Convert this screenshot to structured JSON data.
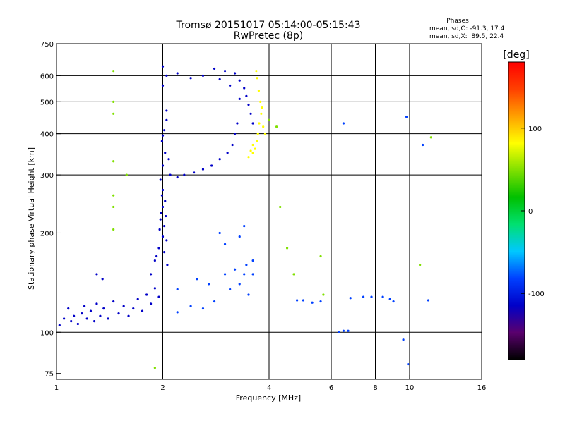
{
  "chart_data": {
    "type": "scatter",
    "title": "Tromsø 20151017 05:14:00-05:15:43",
    "subtitle": "RwPretec (8p)",
    "stats": {
      "heading": "Phases",
      "line_o": "mean, sd,O: -91.3, 17.4",
      "line_x": "mean, sd,X:  89.5, 22.4"
    },
    "xlabel": "Frequency [MHz]",
    "ylabel": "Stationary phase Virtual Height [km]",
    "x_scale": "log",
    "y_scale": "log",
    "xlim": [
      1,
      16
    ],
    "ylim": [
      72,
      750
    ],
    "x_ticks": [
      1,
      2,
      4,
      6,
      8,
      10,
      16
    ],
    "y_ticks": [
      75,
      100,
      200,
      300,
      400,
      500,
      600,
      750
    ],
    "vertical_grid": [
      2,
      4,
      6,
      8,
      10
    ],
    "horizontal_grid": [
      100,
      200,
      300,
      400,
      500,
      600
    ],
    "grid": true,
    "colorbar": {
      "label": "[deg]",
      "range": [
        -180,
        180
      ],
      "ticks": [
        100,
        0,
        -100
      ],
      "tick_labels": [
        "100",
        "0",
        "-100"
      ],
      "colors": [
        "#000000",
        "#5a006e",
        "#0000c8",
        "#0040ff",
        "#00c8ff",
        "#00e070",
        "#00c000",
        "#80e000",
        "#ffff00",
        "#ffa000",
        "#ff4000",
        "#ff0000"
      ]
    },
    "series": [
      {
        "points": [
          [
            1.02,
            105
          ],
          [
            1.05,
            110
          ],
          [
            1.08,
            118
          ],
          [
            1.1,
            108
          ],
          [
            1.12,
            112
          ],
          [
            1.15,
            106
          ],
          [
            1.18,
            114
          ],
          [
            1.2,
            120
          ],
          [
            1.22,
            110
          ],
          [
            1.25,
            116
          ],
          [
            1.28,
            108
          ],
          [
            1.3,
            122
          ],
          [
            1.33,
            112
          ],
          [
            1.36,
            118
          ],
          [
            1.4,
            110
          ],
          [
            1.45,
            124
          ],
          [
            1.5,
            114
          ],
          [
            1.55,
            120
          ],
          [
            1.6,
            112
          ],
          [
            1.65,
            118
          ],
          [
            1.7,
            126
          ],
          [
            1.75,
            116
          ],
          [
            1.8,
            130
          ],
          [
            1.85,
            122
          ],
          [
            1.9,
            136
          ],
          [
            1.95,
            128
          ],
          [
            1.3,
            150
          ],
          [
            1.35,
            145
          ]
        ],
        "phase": -110
      },
      {
        "points": [
          [
            1.85,
            150
          ],
          [
            1.9,
            165
          ],
          [
            1.95,
            180
          ],
          [
            2.0,
            195
          ],
          [
            2.02,
            210
          ],
          [
            1.98,
            230
          ],
          [
            2.03,
            250
          ],
          [
            2.0,
            270
          ],
          [
            1.97,
            220
          ],
          [
            2.05,
            190
          ],
          [
            1.92,
            170
          ],
          [
            2.06,
            160
          ],
          [
            2.0,
            240
          ],
          [
            1.99,
            260
          ],
          [
            2.02,
            175
          ],
          [
            1.96,
            205
          ],
          [
            2.04,
            225
          ]
        ],
        "phase": -120
      },
      {
        "points": [
          [
            1.97,
            290
          ],
          [
            2.0,
            320
          ],
          [
            2.03,
            350
          ],
          [
            1.99,
            380
          ],
          [
            2.02,
            410
          ],
          [
            2.05,
            440
          ],
          [
            2.1,
            300
          ],
          [
            2.2,
            295
          ],
          [
            2.3,
            300
          ],
          [
            2.45,
            305
          ],
          [
            2.6,
            312
          ],
          [
            2.75,
            320
          ],
          [
            2.9,
            335
          ],
          [
            3.05,
            350
          ],
          [
            3.15,
            370
          ],
          [
            3.2,
            400
          ],
          [
            3.25,
            430
          ],
          [
            2.05,
            470
          ],
          [
            2.0,
            395
          ],
          [
            2.08,
            335
          ]
        ],
        "phase": -100
      },
      {
        "points": [
          [
            2.0,
            560
          ],
          [
            2.05,
            600
          ],
          [
            2.0,
            640
          ],
          [
            2.2,
            610
          ],
          [
            2.4,
            590
          ],
          [
            2.6,
            600
          ],
          [
            2.8,
            630
          ],
          [
            3.0,
            620
          ],
          [
            3.2,
            610
          ],
          [
            3.3,
            580
          ],
          [
            3.4,
            550
          ],
          [
            3.45,
            520
          ],
          [
            3.5,
            490
          ],
          [
            3.55,
            460
          ],
          [
            3.3,
            510
          ],
          [
            3.6,
            430
          ],
          [
            3.1,
            560
          ],
          [
            2.9,
            585
          ]
        ],
        "phase": -105
      },
      {
        "points": [
          [
            3.5,
            340
          ],
          [
            3.6,
            350
          ],
          [
            3.65,
            360
          ],
          [
            3.7,
            380
          ],
          [
            3.72,
            400
          ],
          [
            3.75,
            430
          ],
          [
            3.8,
            460
          ],
          [
            3.78,
            500
          ],
          [
            3.74,
            540
          ],
          [
            3.7,
            590
          ],
          [
            3.68,
            620
          ],
          [
            3.85,
            420
          ],
          [
            3.9,
            400
          ],
          [
            3.6,
            370
          ],
          [
            3.55,
            355
          ],
          [
            3.82,
            480
          ]
        ],
        "phase": 90
      },
      {
        "points": [
          [
            2.2,
            115
          ],
          [
            2.4,
            120
          ],
          [
            2.6,
            118
          ],
          [
            2.8,
            124
          ],
          [
            2.2,
            135
          ],
          [
            2.5,
            145
          ],
          [
            2.7,
            140
          ],
          [
            3.0,
            150
          ],
          [
            3.2,
            155
          ],
          [
            3.4,
            150
          ],
          [
            3.1,
            135
          ],
          [
            3.3,
            140
          ],
          [
            3.5,
            130
          ],
          [
            3.6,
            165
          ],
          [
            3.45,
            160
          ],
          [
            3.0,
            185
          ],
          [
            3.3,
            195
          ],
          [
            2.9,
            200
          ],
          [
            3.4,
            210
          ],
          [
            3.6,
            150
          ]
        ],
        "phase": -90
      },
      {
        "points": [
          [
            4.8,
            125
          ],
          [
            5.0,
            125
          ],
          [
            5.3,
            123
          ],
          [
            5.6,
            124
          ],
          [
            6.3,
            100
          ],
          [
            6.5,
            101
          ],
          [
            6.7,
            101
          ],
          [
            6.5,
            430
          ],
          [
            6.8,
            127
          ],
          [
            7.4,
            128
          ],
          [
            7.8,
            128
          ],
          [
            8.4,
            128
          ],
          [
            8.8,
            126
          ],
          [
            9.0,
            124
          ],
          [
            9.6,
            95
          ],
          [
            9.9,
            80
          ],
          [
            9.8,
            450
          ],
          [
            10.9,
            370
          ],
          [
            11.3,
            125
          ]
        ],
        "phase": -80
      },
      {
        "points": [
          [
            1.45,
            620
          ],
          [
            1.45,
            500
          ],
          [
            1.45,
            460
          ],
          [
            1.45,
            330
          ],
          [
            1.45,
            260
          ],
          [
            1.45,
            240
          ],
          [
            1.45,
            205
          ],
          [
            1.58,
            300
          ],
          [
            1.9,
            78
          ],
          [
            4.3,
            240
          ],
          [
            4.5,
            180
          ],
          [
            4.7,
            150
          ],
          [
            5.6,
            170
          ],
          [
            5.7,
            130
          ],
          [
            10.7,
            160
          ],
          [
            11.5,
            390
          ],
          [
            4.0,
            440
          ],
          [
            4.2,
            420
          ]
        ],
        "phase": 60
      }
    ]
  }
}
